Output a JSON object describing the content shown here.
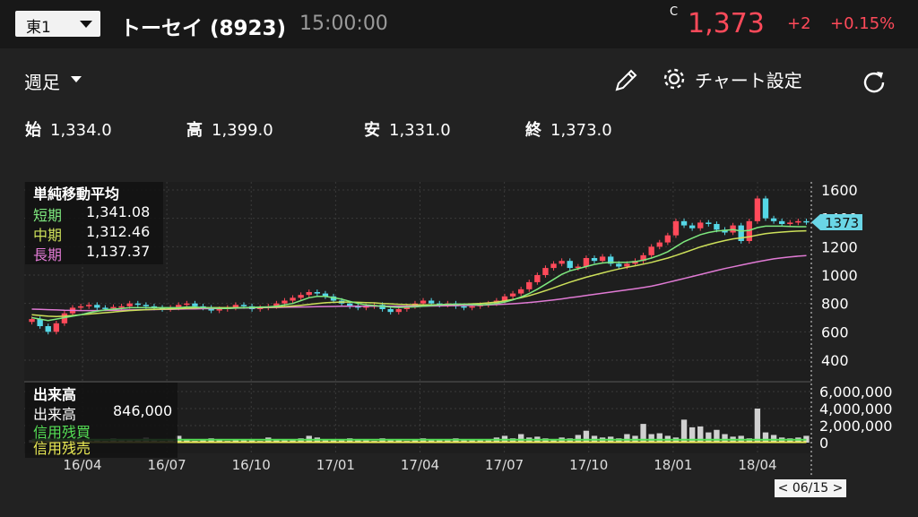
{
  "header": {
    "exchange": "東1",
    "name": "トーセイ (8923)",
    "time": "15:00:00",
    "c_marker": "C",
    "price": "1,373",
    "change": "+2",
    "change_pct": "+0.15%"
  },
  "toolbar": {
    "period": "週足",
    "chart_settings": "チャート設定",
    "pencil_icon": "pencil-icon",
    "gear_icon": "gear-icon",
    "refresh_icon": "refresh-icon"
  },
  "ohlc": {
    "open_label": "始",
    "open": "1,334.0",
    "high_label": "高",
    "high": "1,399.0",
    "low_label": "安",
    "low": "1,331.0",
    "close_label": "終",
    "close": "1,373.0"
  },
  "legend": {
    "title": "単純移動平均",
    "short_label": "短期",
    "short_value": "1,341.08",
    "mid_label": "中期",
    "mid_value": "1,312.46",
    "long_label": "長期",
    "long_value": "1,137.37"
  },
  "volume_legend": {
    "title": "出来高",
    "volume_label": "出来高",
    "volume_value": "846,000",
    "margin_buy_label": "信用残買",
    "margin_sell_label": "信用残売"
  },
  "date_tag": "< 06/15 >",
  "colors": {
    "up": "#ff4a5a",
    "down": "#55d7e6",
    "ma_short": "#7ee87e",
    "ma_mid": "#cde05a",
    "ma_long": "#e07ad4",
    "volume": "#d0d0d0",
    "margin_buy": "#55e055",
    "margin_sell": "#ecec55",
    "price_tag": "#6ad6e6"
  },
  "chart_data": {
    "type": "candlestick",
    "price_axis": {
      "ticks": [
        1600,
        1400,
        1200,
        1000,
        800,
        600,
        400
      ]
    },
    "volume_axis": {
      "ticks": [
        "6,000,000",
        "4,000,000",
        "2,000,000",
        "0"
      ]
    },
    "x_ticks": [
      "16/04",
      "16/07",
      "16/10",
      "17/01",
      "17/04",
      "17/07",
      "17/10",
      "18/01",
      "18/04"
    ],
    "last_price_tag": "1373",
    "close_series": [
      690,
      640,
      600,
      660,
      730,
      770,
      780,
      790,
      770,
      765,
      775,
      780,
      800,
      790,
      780,
      770,
      760,
      770,
      790,
      800,
      780,
      770,
      750,
      760,
      770,
      790,
      780,
      760,
      770,
      780,
      800,
      820,
      840,
      860,
      880,
      870,
      850,
      820,
      800,
      780,
      770,
      780,
      790,
      760,
      740,
      760,
      780,
      800,
      820,
      800,
      790,
      800,
      780,
      770,
      780,
      790,
      800,
      820,
      850,
      870,
      900,
      950,
      1000,
      1050,
      1080,
      1100,
      1050,
      1060,
      1120,
      1100,
      1130,
      1080,
      1060,
      1080,
      1100,
      1140,
      1200,
      1230,
      1280,
      1380,
      1350,
      1330,
      1370,
      1360,
      1320,
      1300,
      1350,
      1240,
      1380,
      1540,
      1400,
      1380,
      1360,
      1370,
      1380,
      1373
    ],
    "ma_short": [
      700,
      690,
      680,
      690,
      700,
      710,
      720,
      735,
      745,
      755,
      760,
      765,
      770,
      770,
      770,
      770,
      770,
      770,
      770,
      775,
      775,
      770,
      768,
      766,
      765,
      768,
      770,
      772,
      774,
      776,
      780,
      790,
      800,
      820,
      840,
      850,
      850,
      840,
      830,
      815,
      800,
      790,
      785,
      780,
      775,
      772,
      774,
      776,
      780,
      785,
      790,
      795,
      795,
      795,
      792,
      790,
      793,
      800,
      810,
      825,
      845,
      870,
      900,
      935,
      970,
      1005,
      1030,
      1045,
      1060,
      1075,
      1085,
      1090,
      1090,
      1090,
      1095,
      1105,
      1120,
      1140,
      1165,
      1200,
      1235,
      1260,
      1285,
      1300,
      1310,
      1315,
      1320,
      1310,
      1315,
      1335,
      1345,
      1345,
      1345,
      1342,
      1341,
      1341
    ],
    "ma_mid": [
      720,
      715,
      710,
      708,
      710,
      715,
      720,
      725,
      730,
      735,
      740,
      745,
      750,
      753,
      756,
      758,
      760,
      762,
      764,
      766,
      768,
      770,
      770,
      770,
      770,
      770,
      770,
      771,
      772,
      773,
      775,
      778,
      782,
      787,
      793,
      800,
      805,
      808,
      810,
      810,
      808,
      806,
      804,
      800,
      797,
      794,
      792,
      790,
      790,
      790,
      791,
      792,
      793,
      795,
      797,
      800,
      804,
      810,
      818,
      828,
      840,
      855,
      872,
      890,
      910,
      930,
      950,
      968,
      985,
      1000,
      1015,
      1030,
      1043,
      1055,
      1066,
      1077,
      1090,
      1105,
      1120,
      1138,
      1158,
      1178,
      1198,
      1215,
      1230,
      1243,
      1255,
      1262,
      1270,
      1282,
      1292,
      1298,
      1303,
      1307,
      1310,
      1312
    ],
    "ma_long": [
      760,
      758,
      756,
      754,
      752,
      751,
      750,
      750,
      750,
      751,
      752,
      753,
      754,
      755,
      756,
      757,
      758,
      759,
      760,
      761,
      762,
      763,
      764,
      765,
      766,
      767,
      768,
      769,
      770,
      771,
      772,
      773,
      774,
      775,
      776,
      777,
      778,
      779,
      780,
      780,
      780,
      780,
      780,
      780,
      780,
      780,
      780,
      780,
      781,
      782,
      783,
      784,
      785,
      786,
      787,
      788,
      790,
      792,
      795,
      798,
      802,
      807,
      812,
      818,
      825,
      832,
      840,
      848,
      856,
      864,
      872,
      880,
      888,
      896,
      904,
      912,
      922,
      934,
      948,
      962,
      976,
      990,
      1004,
      1018,
      1032,
      1046,
      1058,
      1070,
      1082,
      1094,
      1104,
      1114,
      1122,
      1128,
      1133,
      1137
    ],
    "volume_millions": [
      0.3,
      0.4,
      0.6,
      0.3,
      0.2,
      0.4,
      0.3,
      0.2,
      0.3,
      0.2,
      0.5,
      0.4,
      0.3,
      0.3,
      0.6,
      0.4,
      0.2,
      0.3,
      0.8,
      0.3,
      0.2,
      0.4,
      0.5,
      0.3,
      0.2,
      0.3,
      0.4,
      0.3,
      0.2,
      0.6,
      0.3,
      0.4,
      0.3,
      0.5,
      0.8,
      0.6,
      0.4,
      0.3,
      0.3,
      0.5,
      0.4,
      0.3,
      0.2,
      0.5,
      0.4,
      0.3,
      0.2,
      0.3,
      0.5,
      0.3,
      0.4,
      0.3,
      0.5,
      0.4,
      0.3,
      0.4,
      0.3,
      0.6,
      0.8,
      0.5,
      1.0,
      0.6,
      0.7,
      0.5,
      0.4,
      0.6,
      0.5,
      0.9,
      1.4,
      0.8,
      0.6,
      0.7,
      0.5,
      1.0,
      0.8,
      2.2,
      1.0,
      1.1,
      0.8,
      0.6,
      2.7,
      1.8,
      1.9,
      1.2,
      1.5,
      1.0,
      0.7,
      0.8,
      0.5,
      4.0,
      1.2,
      0.9,
      0.6,
      0.5,
      0.6,
      0.8
    ]
  }
}
